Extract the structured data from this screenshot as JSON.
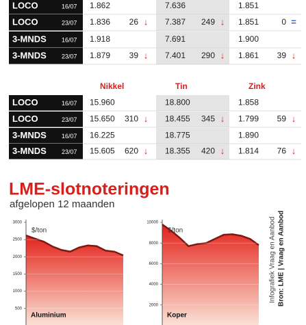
{
  "top_table": {
    "rows": [
      {
        "label": "LOCO",
        "date": "16/07",
        "cells": [
          {
            "value": "1.862"
          },
          {
            "value": "7.636"
          },
          {
            "value": "1.851"
          }
        ]
      },
      {
        "label": "LOCO",
        "date": "23/07",
        "cells": [
          {
            "value": "1.836",
            "change": "26",
            "trend": "↓"
          },
          {
            "value": "7.387",
            "change": "249",
            "trend": "↓"
          },
          {
            "value": "1.851",
            "change": "0",
            "trend": "="
          }
        ]
      },
      {
        "label": "3-MNDS",
        "date": "16/07",
        "cells": [
          {
            "value": "1.918"
          },
          {
            "value": "7.691"
          },
          {
            "value": "1.900"
          }
        ]
      },
      {
        "label": "3-MNDS",
        "date": "23/07",
        "cells": [
          {
            "value": "1.879",
            "change": "39",
            "trend": "↓"
          },
          {
            "value": "7.401",
            "change": "290",
            "trend": "↓"
          },
          {
            "value": "1.861",
            "change": "39",
            "trend": "↓"
          }
        ]
      }
    ]
  },
  "bottom_table": {
    "headers": [
      "Nikkel",
      "Tin",
      "Zink"
    ],
    "rows": [
      {
        "label": "LOCO",
        "date": "16/07",
        "cells": [
          {
            "value": "15.960"
          },
          {
            "value": "18.800"
          },
          {
            "value": "1.858"
          }
        ]
      },
      {
        "label": "LOCO",
        "date": "23/07",
        "cells": [
          {
            "value": "15.650",
            "change": "310",
            "trend": "↓"
          },
          {
            "value": "18.455",
            "change": "345",
            "trend": "↓"
          },
          {
            "value": "1.799",
            "change": "59",
            "trend": "↓"
          }
        ]
      },
      {
        "label": "3-MNDS",
        "date": "16/07",
        "cells": [
          {
            "value": "16.225"
          },
          {
            "value": "18.775"
          },
          {
            "value": "1.890"
          }
        ]
      },
      {
        "label": "3-MNDS",
        "date": "23/07",
        "cells": [
          {
            "value": "15.605",
            "change": "620",
            "trend": "↓"
          },
          {
            "value": "18.355",
            "change": "420",
            "trend": "↓"
          },
          {
            "value": "1.814",
            "change": "76",
            "trend": "↓"
          }
        ]
      }
    ]
  },
  "header": {
    "title": "LME-slotnoteringen",
    "subtitle": "afgelopen 12 maanden"
  },
  "credits": [
    "Infografiek Vraag en Aanbod",
    "Bron: LME | Vraag en Aanbod"
  ],
  "chart_data": [
    {
      "type": "area",
      "unit_label": "$/ton",
      "label": "Aluminium",
      "color": "#e3231b",
      "categories": [
        null,
        null,
        null,
        null,
        null,
        null,
        null,
        null,
        null,
        null,
        null,
        null
      ],
      "values": [
        2620,
        2530,
        2440,
        2300,
        2200,
        2150,
        2270,
        2330,
        2310,
        2180,
        2150,
        2040
      ],
      "ylim": [
        0,
        3000
      ],
      "yticks": [
        500,
        1000,
        1500,
        2000,
        2500,
        3000
      ],
      "grid": true
    },
    {
      "type": "area",
      "unit_label": "$/ton",
      "label": "Koper",
      "color": "#e3231b",
      "categories": [
        null,
        null,
        null,
        null,
        null,
        null,
        null,
        null,
        null,
        null,
        null,
        null
      ],
      "values": [
        9800,
        9200,
        8500,
        7700,
        7900,
        8000,
        8400,
        8800,
        8850,
        8700,
        8400,
        7800
      ],
      "ylim": [
        0,
        10000
      ],
      "yticks": [
        2000,
        4000,
        6000,
        8000,
        10000
      ],
      "grid": true
    }
  ]
}
